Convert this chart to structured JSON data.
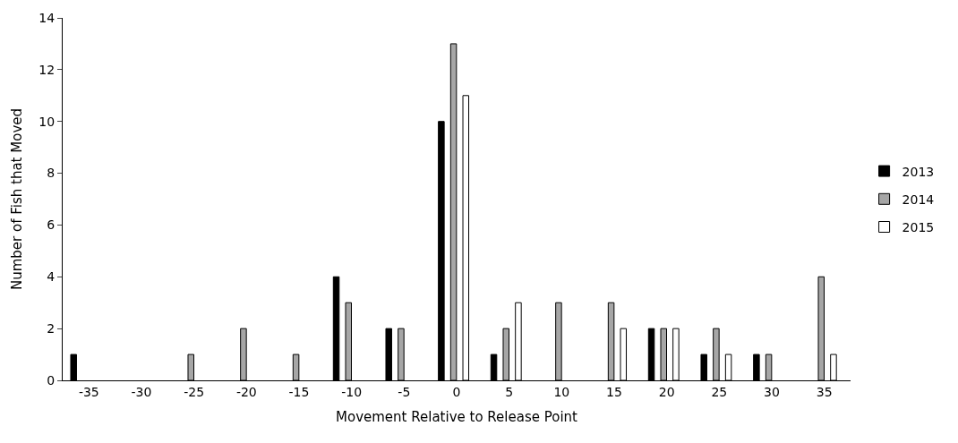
{
  "chart_data": {
    "type": "bar",
    "xlabel": "Movement Relative to Release Point",
    "ylabel": "Number of Fish that Moved",
    "categories": [
      "-35",
      "-30",
      "-25",
      "-20",
      "-15",
      "-10",
      "-5",
      "0",
      "5",
      "10",
      "15",
      "20",
      "25",
      "30",
      "35"
    ],
    "series": [
      {
        "name": "2013",
        "color": "#000000",
        "values": [
          1,
          0,
          0,
          0,
          0,
          4,
          2,
          10,
          1,
          0,
          0,
          2,
          1,
          1,
          0
        ]
      },
      {
        "name": "2014",
        "color": "#a6a6a6",
        "values": [
          0,
          0,
          1,
          2,
          1,
          3,
          2,
          13,
          2,
          3,
          3,
          2,
          2,
          1,
          4
        ]
      },
      {
        "name": "2015",
        "color": "#ffffff",
        "values": [
          0,
          0,
          0,
          0,
          0,
          0,
          0,
          11,
          3,
          0,
          2,
          2,
          1,
          0,
          1
        ]
      }
    ],
    "ylim": [
      0,
      14
    ],
    "yticks": [
      0,
      2,
      4,
      6,
      8,
      10,
      12,
      14
    ],
    "legend": "right"
  }
}
